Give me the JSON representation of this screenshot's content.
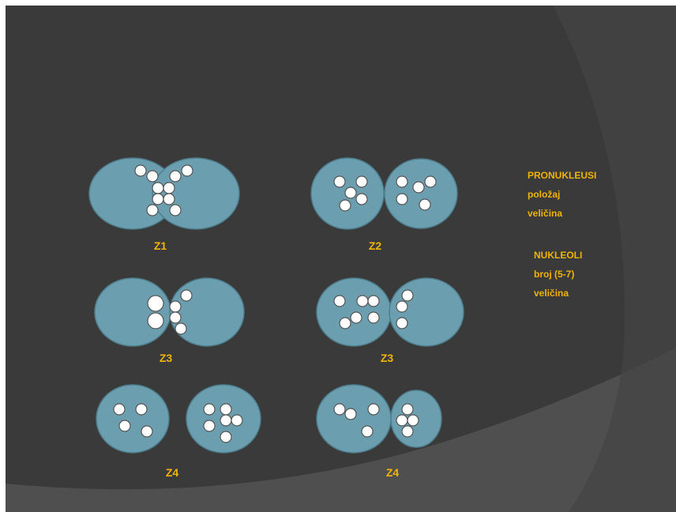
{
  "cells": [
    {
      "label": "Z1"
    },
    {
      "label": "Z2"
    },
    {
      "label": "Z3"
    },
    {
      "label": "Z3"
    },
    {
      "label": "Z4"
    },
    {
      "label": "Z4"
    }
  ],
  "legend": {
    "groups": [
      {
        "heading": "PRONUKLEUSI",
        "items": [
          "položaj",
          "veličina"
        ]
      },
      {
        "heading": "NUKLEOLI",
        "items": [
          "broj (5-7)",
          "veličina"
        ]
      }
    ]
  }
}
